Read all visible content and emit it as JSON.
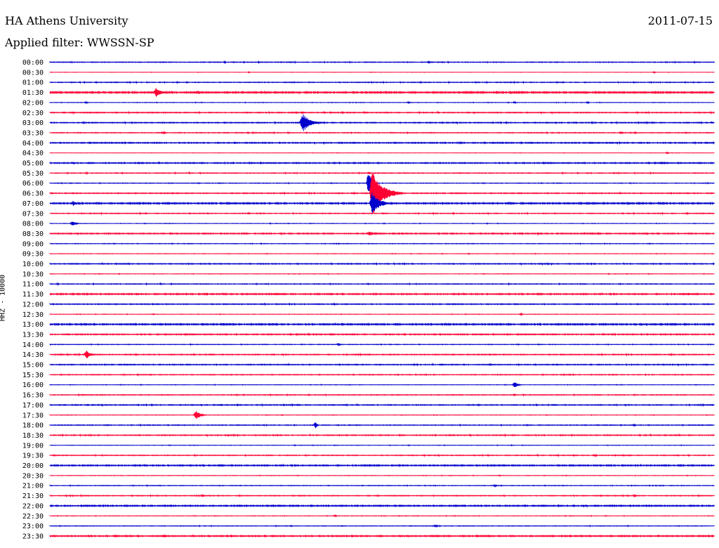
{
  "header": {
    "title": "HA Athens University",
    "date": "2011-07-15",
    "filter": "Applied filter: WWSSN-SP"
  },
  "chart_data": {
    "type": "line",
    "chart_kind": "helicorder",
    "station_label": "HHZ - 10000",
    "colors": {
      "even_row": "#0000cc",
      "odd_row": "#ff0033"
    },
    "rows": [
      {
        "time": "00:00",
        "noise": 0.5,
        "events": [
          {
            "t": 0.57,
            "amp": 1.2,
            "dur": 0.02
          }
        ]
      },
      {
        "time": "00:30",
        "noise": 0.2,
        "events": [
          {
            "t": 0.3,
            "amp": 1.0,
            "dur": 0.004
          },
          {
            "t": 0.91,
            "amp": 1.0,
            "dur": 0.004
          }
        ]
      },
      {
        "time": "01:00",
        "noise": 0.5,
        "events": []
      },
      {
        "time": "01:30",
        "noise": 1.0,
        "events": [
          {
            "t": 0.16,
            "amp": 7,
            "dur": 0.02
          }
        ]
      },
      {
        "time": "02:00",
        "noise": 0.3,
        "events": [
          {
            "t": 0.055,
            "amp": 1.5,
            "dur": 0.004
          },
          {
            "t": 0.54,
            "amp": 1.5,
            "dur": 0.006
          },
          {
            "t": 0.7,
            "amp": 1.5,
            "dur": 0.004
          },
          {
            "t": 0.81,
            "amp": 1.5,
            "dur": 0.004
          }
        ]
      },
      {
        "time": "02:30",
        "noise": 0.6,
        "events": [
          {
            "t": 0.38,
            "amp": 1.5,
            "dur": 0.005
          }
        ]
      },
      {
        "time": "03:00",
        "noise": 0.6,
        "events": [
          {
            "t": 0.38,
            "amp": 14,
            "dur": 0.03
          }
        ]
      },
      {
        "time": "03:30",
        "noise": 0.5,
        "events": [
          {
            "t": 0.17,
            "amp": 1.5,
            "dur": 0.01
          },
          {
            "t": 0.86,
            "amp": 2,
            "dur": 0.006
          }
        ]
      },
      {
        "time": "04:00",
        "noise": 0.7,
        "events": []
      },
      {
        "time": "04:30",
        "noise": 0.2,
        "events": [
          {
            "t": 0.93,
            "amp": 1.5,
            "dur": 0.004
          }
        ]
      },
      {
        "time": "05:00",
        "noise": 0.7,
        "events": [
          {
            "t": 0.035,
            "amp": 2,
            "dur": 0.006
          },
          {
            "t": 0.92,
            "amp": 1.5,
            "dur": 0.03
          }
        ]
      },
      {
        "time": "05:30",
        "noise": 0.5,
        "events": [
          {
            "t": 0.48,
            "amp": 1.5,
            "dur": 0.01
          }
        ]
      },
      {
        "time": "06:00",
        "noise": 0.4,
        "events": [
          {
            "t": 0.48,
            "amp": 20,
            "dur": 0.01
          }
        ]
      },
      {
        "time": "06:30",
        "noise": 0.6,
        "events": [
          {
            "t": 0.485,
            "amp": 34,
            "dur": 0.045
          }
        ]
      },
      {
        "time": "07:00",
        "noise": 0.9,
        "events": [
          {
            "t": 0.035,
            "amp": 4,
            "dur": 0.012
          },
          {
            "t": 0.485,
            "amp": 18,
            "dur": 0.03
          }
        ]
      },
      {
        "time": "07:30",
        "noise": 0.5,
        "events": [
          {
            "t": 0.3,
            "amp": 1.5,
            "dur": 0.004
          },
          {
            "t": 0.96,
            "amp": 1.5,
            "dur": 0.004
          }
        ]
      },
      {
        "time": "08:00",
        "noise": 0.3,
        "events": [
          {
            "t": 0.034,
            "amp": 4,
            "dur": 0.012
          }
        ]
      },
      {
        "time": "08:30",
        "noise": 0.7,
        "events": [
          {
            "t": 0.48,
            "amp": 3,
            "dur": 0.03
          }
        ]
      },
      {
        "time": "09:00",
        "noise": 0.4,
        "events": []
      },
      {
        "time": "09:30",
        "noise": 0.3,
        "events": []
      },
      {
        "time": "10:00",
        "noise": 0.6,
        "events": []
      },
      {
        "time": "10:30",
        "noise": 0.3,
        "events": []
      },
      {
        "time": "11:00",
        "noise": 0.5,
        "events": []
      },
      {
        "time": "11:30",
        "noise": 0.8,
        "events": []
      },
      {
        "time": "12:00",
        "noise": 0.6,
        "events": []
      },
      {
        "time": "12:30",
        "noise": 0.3,
        "events": [
          {
            "t": 0.71,
            "amp": 1.5,
            "dur": 0.004
          }
        ]
      },
      {
        "time": "13:00",
        "noise": 0.9,
        "events": []
      },
      {
        "time": "13:30",
        "noise": 0.7,
        "events": []
      },
      {
        "time": "14:00",
        "noise": 0.4,
        "events": [
          {
            "t": 0.435,
            "amp": 3,
            "dur": 0.005
          }
        ]
      },
      {
        "time": "14:30",
        "noise": 0.6,
        "events": [
          {
            "t": 0.055,
            "amp": 6,
            "dur": 0.016
          }
        ]
      },
      {
        "time": "15:00",
        "noise": 0.6,
        "events": []
      },
      {
        "time": "15:30",
        "noise": 0.5,
        "events": []
      },
      {
        "time": "16:00",
        "noise": 0.3,
        "events": [
          {
            "t": 0.7,
            "amp": 6,
            "dur": 0.01
          }
        ]
      },
      {
        "time": "16:30",
        "noise": 0.5,
        "events": [
          {
            "t": 0.7,
            "amp": 1.5,
            "dur": 0.004
          }
        ]
      },
      {
        "time": "17:00",
        "noise": 0.6,
        "events": []
      },
      {
        "time": "17:30",
        "noise": 0.3,
        "events": [
          {
            "t": 0.22,
            "amp": 7,
            "dur": 0.016
          }
        ]
      },
      {
        "time": "18:00",
        "noise": 0.5,
        "events": [
          {
            "t": 0.4,
            "amp": 5,
            "dur": 0.006
          },
          {
            "t": 0.88,
            "amp": 1.5,
            "dur": 0.005
          }
        ]
      },
      {
        "time": "18:30",
        "noise": 0.6,
        "events": []
      },
      {
        "time": "19:00",
        "noise": 0.3,
        "events": []
      },
      {
        "time": "19:30",
        "noise": 0.5,
        "events": [
          {
            "t": 0.82,
            "amp": 1.5,
            "dur": 0.01
          }
        ]
      },
      {
        "time": "20:00",
        "noise": 0.8,
        "events": []
      },
      {
        "time": "20:30",
        "noise": 0.3,
        "events": []
      },
      {
        "time": "21:00",
        "noise": 0.4,
        "events": [
          {
            "t": 0.67,
            "amp": 1.5,
            "dur": 0.008
          }
        ]
      },
      {
        "time": "21:30",
        "noise": 0.5,
        "events": [
          {
            "t": 0.23,
            "amp": 2,
            "dur": 0.006
          },
          {
            "t": 0.88,
            "amp": 1.5,
            "dur": 0.006
          }
        ]
      },
      {
        "time": "22:00",
        "noise": 0.8,
        "events": []
      },
      {
        "time": "22:30",
        "noise": 0.3,
        "events": [
          {
            "t": 0.43,
            "amp": 1.5,
            "dur": 0.004
          }
        ]
      },
      {
        "time": "23:00",
        "noise": 0.4,
        "events": [
          {
            "t": 0.58,
            "amp": 1.5,
            "dur": 0.014
          }
        ]
      },
      {
        "time": "23:30",
        "noise": 0.8,
        "events": []
      }
    ]
  }
}
